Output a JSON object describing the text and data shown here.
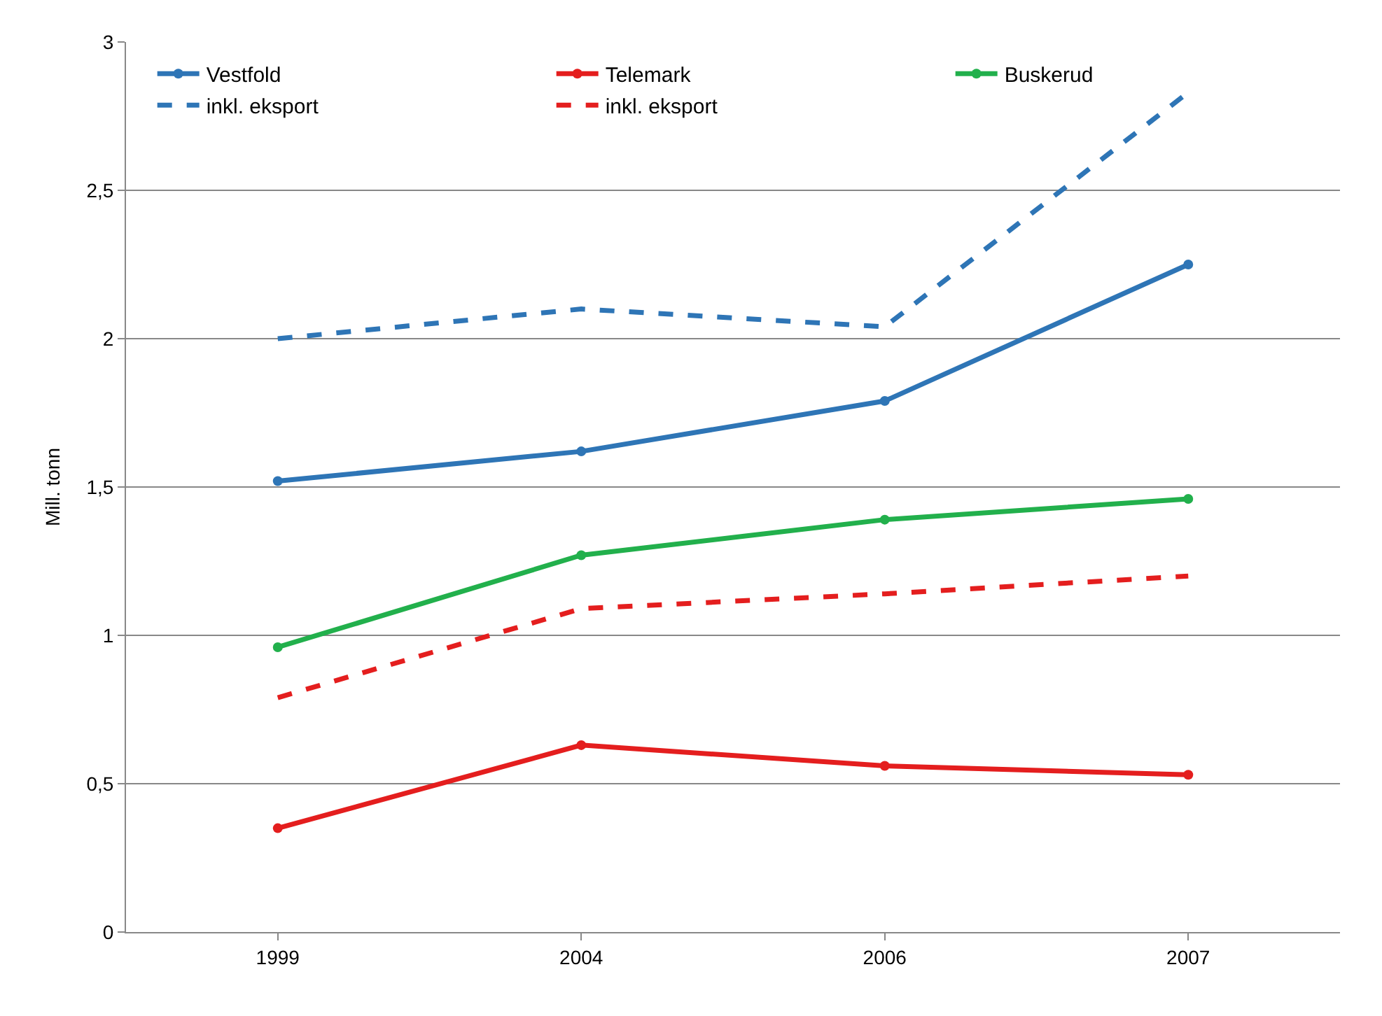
{
  "chart_data": {
    "type": "line",
    "ylabel": "Mill. tonn",
    "categories": [
      "1999",
      "2004",
      "2006",
      "2007"
    ],
    "series": [
      {
        "name": "Vestfold",
        "color": "#2e75b6",
        "values": [
          1.52,
          1.62,
          1.79,
          2.25
        ],
        "marker": "circle",
        "line_style": "solid"
      },
      {
        "name": "Telemark",
        "color": "#e41e1e",
        "values": [
          0.35,
          0.63,
          0.56,
          0.53
        ],
        "marker": "circle",
        "line_style": "solid"
      },
      {
        "name": "Buskerud",
        "color": "#22b04c",
        "values": [
          0.96,
          1.27,
          1.39,
          1.46
        ],
        "marker": "circle",
        "line_style": "solid"
      },
      {
        "name": "inkl. eksport",
        "color": "#2e75b6",
        "values": [
          2.0,
          2.1,
          2.04,
          2.83
        ],
        "marker": "none",
        "line_style": "dashed"
      },
      {
        "name": "inkl. eksport",
        "color": "#e41e1e",
        "values": [
          0.79,
          1.09,
          1.14,
          1.2
        ],
        "marker": "none",
        "line_style": "dashed"
      }
    ],
    "ylim": [
      0,
      3
    ],
    "yticks": [
      0,
      {
        "value": 0.5,
        "label": "0,5"
      },
      1,
      {
        "value": 1.5,
        "label": "1,5"
      },
      2,
      {
        "value": 2.5,
        "label": "2,5"
      },
      3
    ],
    "grid": "y",
    "legend": "top left"
  }
}
